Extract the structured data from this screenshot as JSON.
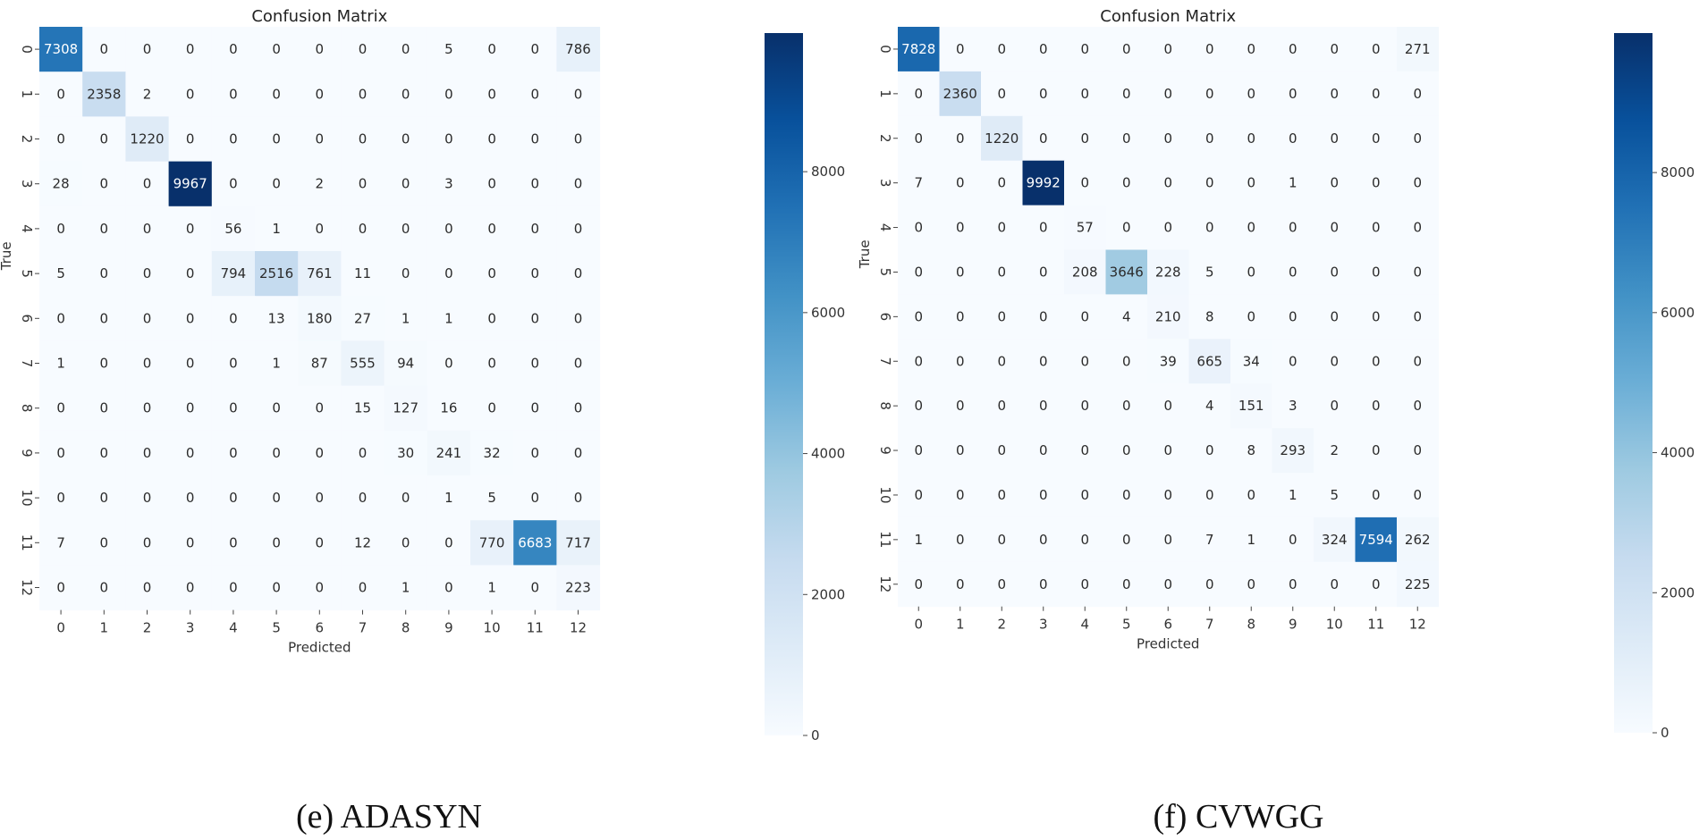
{
  "figures": [
    {
      "caption": "(e) ADASYN",
      "chart_data": {
        "type": "heatmap",
        "title": "Confusion Matrix",
        "xlabel": "Predicted",
        "ylabel": "True",
        "x_categories": [
          "0",
          "1",
          "2",
          "3",
          "4",
          "5",
          "6",
          "7",
          "8",
          "9",
          "10",
          "11",
          "12"
        ],
        "y_categories": [
          "0",
          "1",
          "2",
          "3",
          "4",
          "5",
          "6",
          "7",
          "8",
          "9",
          "10",
          "11",
          "12"
        ],
        "values": [
          [
            7308,
            0,
            0,
            0,
            0,
            0,
            0,
            0,
            0,
            5,
            0,
            0,
            786
          ],
          [
            0,
            2358,
            2,
            0,
            0,
            0,
            0,
            0,
            0,
            0,
            0,
            0,
            0
          ],
          [
            0,
            0,
            1220,
            0,
            0,
            0,
            0,
            0,
            0,
            0,
            0,
            0,
            0
          ],
          [
            28,
            0,
            0,
            9967,
            0,
            0,
            2,
            0,
            0,
            3,
            0,
            0,
            0
          ],
          [
            0,
            0,
            0,
            0,
            56,
            1,
            0,
            0,
            0,
            0,
            0,
            0,
            0
          ],
          [
            5,
            0,
            0,
            0,
            794,
            2516,
            761,
            11,
            0,
            0,
            0,
            0,
            0
          ],
          [
            0,
            0,
            0,
            0,
            0,
            13,
            180,
            27,
            1,
            1,
            0,
            0,
            0
          ],
          [
            1,
            0,
            0,
            0,
            0,
            1,
            87,
            555,
            94,
            0,
            0,
            0,
            0
          ],
          [
            0,
            0,
            0,
            0,
            0,
            0,
            0,
            15,
            127,
            16,
            0,
            0,
            0
          ],
          [
            0,
            0,
            0,
            0,
            0,
            0,
            0,
            0,
            30,
            241,
            32,
            0,
            0
          ],
          [
            0,
            0,
            0,
            0,
            0,
            0,
            0,
            0,
            0,
            1,
            5,
            0,
            0
          ],
          [
            7,
            0,
            0,
            0,
            0,
            0,
            0,
            12,
            0,
            0,
            770,
            6683,
            717
          ],
          [
            0,
            0,
            0,
            0,
            0,
            0,
            0,
            0,
            1,
            0,
            1,
            0,
            223
          ]
        ],
        "colormap": "Blues",
        "vmin": 0,
        "vmax": 9967,
        "colorbar_ticks": [
          "0",
          "2000",
          "4000",
          "6000",
          "8000"
        ]
      }
    },
    {
      "caption": "(f) CVWGG",
      "chart_data": {
        "type": "heatmap",
        "title": "Confusion Matrix",
        "xlabel": "Predicted",
        "ylabel": "True",
        "x_categories": [
          "0",
          "1",
          "2",
          "3",
          "4",
          "5",
          "6",
          "7",
          "8",
          "9",
          "10",
          "11",
          "12"
        ],
        "y_categories": [
          "0",
          "1",
          "2",
          "3",
          "4",
          "5",
          "6",
          "7",
          "8",
          "9",
          "10",
          "11",
          "12"
        ],
        "values": [
          [
            7828,
            0,
            0,
            0,
            0,
            0,
            0,
            0,
            0,
            0,
            0,
            0,
            271
          ],
          [
            0,
            2360,
            0,
            0,
            0,
            0,
            0,
            0,
            0,
            0,
            0,
            0,
            0
          ],
          [
            0,
            0,
            1220,
            0,
            0,
            0,
            0,
            0,
            0,
            0,
            0,
            0,
            0
          ],
          [
            7,
            0,
            0,
            9992,
            0,
            0,
            0,
            0,
            0,
            1,
            0,
            0,
            0
          ],
          [
            0,
            0,
            0,
            0,
            57,
            0,
            0,
            0,
            0,
            0,
            0,
            0,
            0
          ],
          [
            0,
            0,
            0,
            0,
            208,
            3646,
            228,
            5,
            0,
            0,
            0,
            0,
            0
          ],
          [
            0,
            0,
            0,
            0,
            0,
            4,
            210,
            8,
            0,
            0,
            0,
            0,
            0
          ],
          [
            0,
            0,
            0,
            0,
            0,
            0,
            39,
            665,
            34,
            0,
            0,
            0,
            0
          ],
          [
            0,
            0,
            0,
            0,
            0,
            0,
            0,
            4,
            151,
            3,
            0,
            0,
            0
          ],
          [
            0,
            0,
            0,
            0,
            0,
            0,
            0,
            0,
            8,
            293,
            2,
            0,
            0
          ],
          [
            0,
            0,
            0,
            0,
            0,
            0,
            0,
            0,
            0,
            1,
            5,
            0,
            0
          ],
          [
            1,
            0,
            0,
            0,
            0,
            0,
            0,
            7,
            1,
            0,
            324,
            7594,
            262
          ],
          [
            0,
            0,
            0,
            0,
            0,
            0,
            0,
            0,
            0,
            0,
            0,
            0,
            225
          ]
        ],
        "colormap": "Blues",
        "vmin": 0,
        "vmax": 9992,
        "colorbar_ticks": [
          "0",
          "2000",
          "4000",
          "6000",
          "8000"
        ]
      }
    }
  ]
}
